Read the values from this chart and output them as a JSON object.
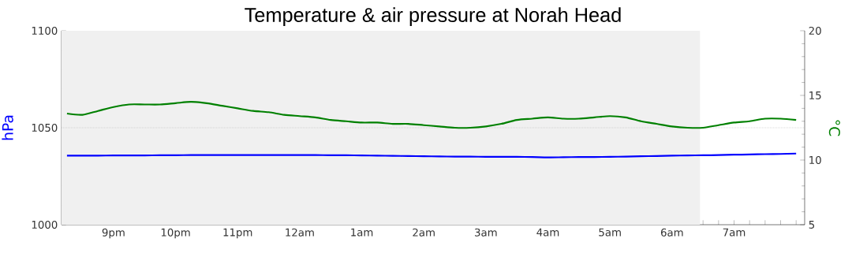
{
  "chart_data": {
    "type": "line",
    "title": "Temperature & air pressure at Norah Head",
    "ylabel": "hPa",
    "y2label": "°C",
    "categories": [
      null,
      null,
      null,
      "9pm",
      null,
      null,
      null,
      "10pm",
      null,
      null,
      null,
      "11pm",
      null,
      null,
      null,
      "12am",
      null,
      null,
      null,
      "1am",
      null,
      null,
      null,
      "2am",
      null,
      null,
      null,
      "3am",
      null,
      null,
      null,
      "4am",
      null,
      null,
      null,
      "5am",
      null,
      null,
      null,
      "6am",
      null,
      null,
      null,
      "7am",
      null,
      null,
      null,
      null
    ],
    "ylim": [
      1000,
      1100
    ],
    "yticks": [
      1000,
      1050,
      1100
    ],
    "y2lim": [
      5,
      20
    ],
    "y2ticks": [
      5,
      10,
      15,
      20
    ],
    "ref_lines": [
      {
        "axis": "y",
        "value": 1050,
        "color": "#aaaaaa",
        "line_style": "dotted"
      }
    ],
    "series": [
      {
        "color": "#0000ff",
        "values": [
          1035.6,
          1035.6,
          1035.6,
          1035.7,
          1035.7,
          1035.7,
          1035.8,
          1035.8,
          1035.9,
          1035.9,
          1035.9,
          1035.9,
          1035.9,
          1035.9,
          1035.9,
          1035.9,
          1035.9,
          1035.8,
          1035.8,
          1035.7,
          1035.6,
          1035.5,
          1035.4,
          1035.3,
          1035.2,
          1035.1,
          1035.1,
          1035.0,
          1035.0,
          1035.0,
          1034.9,
          1034.7,
          1034.8,
          1034.9,
          1034.9,
          1035.0,
          1035.1,
          1035.3,
          1035.4,
          1035.6,
          1035.7,
          1035.8,
          1035.9,
          1036.1,
          1036.2,
          1036.4,
          1036.5,
          1036.7
        ]
      },
      {
        "color": "#008000",
        "axis": "y2",
        "values": [
          13.6,
          13.5,
          13.8,
          14.1,
          14.3,
          14.3,
          14.3,
          14.4,
          14.5,
          14.4,
          14.2,
          14.0,
          13.8,
          13.7,
          13.5,
          13.4,
          13.3,
          13.1,
          13.0,
          12.9,
          12.9,
          12.8,
          12.8,
          12.7,
          12.6,
          12.5,
          12.5,
          12.6,
          12.8,
          13.1,
          13.2,
          13.3,
          13.2,
          13.2,
          13.3,
          13.4,
          13.3,
          13.0,
          12.8,
          12.6,
          12.5,
          12.5,
          12.7,
          12.9,
          13.0,
          13.2,
          13.2,
          13.1
        ]
      }
    ]
  }
}
